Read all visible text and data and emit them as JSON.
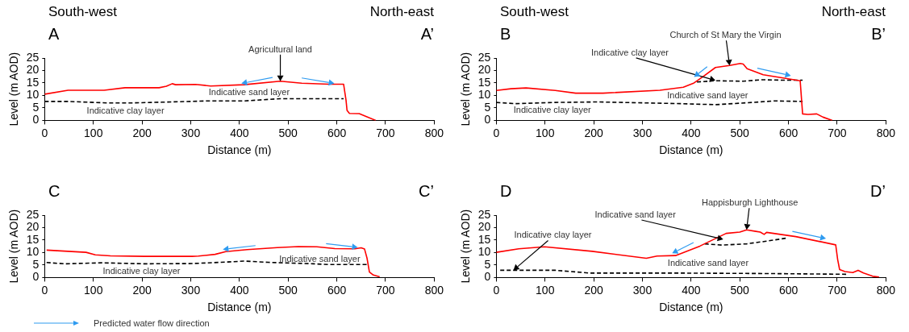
{
  "chart_data": [
    {
      "type": "line",
      "xlabel": "Distance (m)",
      "ylabel": "Level (m AOD)",
      "xlim": [
        0,
        800
      ],
      "xticks": [
        0,
        100,
        200,
        300,
        400,
        500,
        600,
        700,
        800
      ],
      "ylim": [
        0,
        25
      ],
      "yticks": [
        0,
        5,
        10,
        15,
        20,
        25
      ],
      "annotations": [
        "A",
        "A’",
        "South-west",
        "North-east",
        {
          "text": "Agricultural land",
          "x": 484,
          "y": 15.7
        },
        "Indicative sand layer",
        "Indicative clay layer"
      ],
      "series": [
        {
          "color": "#ff0000",
          "line_style": "solid",
          "x": [
            0,
            48,
            122,
            165,
            235,
            250,
            262,
            269,
            310,
            341,
            409,
            484,
            528,
            584,
            614,
            619,
            621,
            626,
            646,
            662,
            680
          ],
          "values": [
            10.5,
            12.1,
            12.1,
            13.1,
            13.1,
            13.7,
            14.7,
            14.3,
            14.4,
            13.8,
            14.3,
            15.7,
            14.9,
            14.5,
            14.5,
            8,
            4,
            2.8,
            2.7,
            1.4,
            0
          ]
        },
        {
          "color": "#000000",
          "line_style": "dashed",
          "x": [
            0,
            48,
            129,
            179,
            241,
            335,
            409,
            484,
            614
          ],
          "values": [
            7.6,
            7.6,
            7,
            7,
            7.3,
            7.8,
            7.8,
            8.7,
            8.7
          ]
        }
      ]
    },
    {
      "type": "line",
      "xlabel": "Distance (m)",
      "ylabel": "Level (m AOD)",
      "xlim": [
        0,
        800
      ],
      "xticks": [
        0,
        100,
        200,
        300,
        400,
        500,
        600,
        700,
        800
      ],
      "ylim": [
        0,
        25
      ],
      "yticks": [
        0,
        5,
        10,
        15,
        20,
        25
      ],
      "annotations": [
        "B",
        "B’",
        "South-west",
        "North-east",
        {
          "text": "Church of St Mary the Virgin",
          "x": 479,
          "y": 22
        },
        {
          "text": "Indicative clay layer",
          "x": 450,
          "y": 16
        },
        "Indicative sand layer",
        "Indicative clay layer"
      ],
      "series": [
        {
          "color": "#ff0000",
          "line_style": "solid",
          "x": [
            0,
            30,
            61,
            121,
            163,
            219,
            336,
            384,
            406,
            425,
            450,
            479,
            501,
            507,
            515,
            536,
            548,
            589,
            624,
            629,
            640,
            658,
            671,
            690
          ],
          "values": [
            12,
            12.7,
            13,
            12,
            10.9,
            10.9,
            12.1,
            13.3,
            15,
            17.6,
            21.2,
            22,
            22.8,
            22.6,
            20.7,
            19.2,
            18.3,
            17,
            15.9,
            2.6,
            2.4,
            2.6,
            1.3,
            0
          ]
        },
        {
          "color": "#000000",
          "line_style": "dashed",
          "x": [
            0,
            39,
            121,
            210,
            381,
            450,
            526,
            571,
            629
          ],
          "values": [
            7.2,
            6.7,
            7.2,
            7.4,
            6.7,
            6.3,
            7.2,
            7.8,
            7.6
          ]
        },
        {
          "color": "#000000",
          "line_style": "dashed",
          "x": [
            412,
            450,
            507,
            545,
            589,
            629
          ],
          "values": [
            15.4,
            15.9,
            15.7,
            16.3,
            16.1,
            16.1
          ]
        }
      ]
    },
    {
      "type": "line",
      "xlabel": "Distance (m)",
      "ylabel": "Level (m AOD)",
      "xlim": [
        0,
        800
      ],
      "xticks": [
        0,
        100,
        200,
        300,
        400,
        500,
        600,
        700,
        800
      ],
      "ylim": [
        0,
        25
      ],
      "yticks": [
        0,
        5,
        10,
        15,
        20,
        25
      ],
      "annotations": [
        "C",
        "C’",
        "Predicted water flow direction",
        "Indicative sand layer",
        "Indicative clay layer"
      ],
      "series": [
        {
          "color": "#ff0000",
          "line_style": "solid",
          "x": [
            4,
            48,
            85,
            104,
            135,
            204,
            303,
            316,
            350,
            372,
            416,
            478,
            521,
            559,
            596,
            637,
            650,
            657,
            662,
            667,
            675,
            688
          ],
          "values": [
            11,
            10.5,
            10.1,
            9.1,
            8.7,
            8.5,
            8.5,
            8.6,
            9.3,
            10.4,
            11.2,
            12,
            12.4,
            12.3,
            11.6,
            11.5,
            11.9,
            11.4,
            7.8,
            2.2,
            1,
            0.3
          ]
        },
        {
          "color": "#000000",
          "line_style": "dashed",
          "x": [
            4,
            42,
            117,
            204,
            303,
            384,
            409,
            459,
            553,
            584,
            665
          ],
          "values": [
            6,
            5.5,
            5.9,
            5.5,
            5.6,
            6.3,
            6.6,
            6.1,
            5.5,
            5.2,
            5.2
          ]
        }
      ]
    },
    {
      "type": "line",
      "xlabel": "Distance (m)",
      "ylabel": "Level (m AOD)",
      "xlim": [
        0,
        800
      ],
      "xticks": [
        0,
        100,
        200,
        300,
        400,
        500,
        600,
        700,
        800
      ],
      "ylim": [
        0,
        25
      ],
      "yticks": [
        0,
        5,
        10,
        15,
        20,
        25
      ],
      "annotations": [
        "D",
        "D’",
        {
          "text": "Happisburgh Lighthouse",
          "x": 514,
          "y": 19.1
        },
        {
          "text": "Indicative sand layer",
          "x": 466,
          "y": 15.3
        },
        {
          "text": "Indicative clay layer",
          "x": 35,
          "y": 2.9
        },
        "Indicative sand layer"
      ],
      "series": [
        {
          "color": "#ff0000",
          "line_style": "solid",
          "x": [
            0,
            46,
            99,
            197,
            308,
            330,
            368,
            418,
            472,
            500,
            514,
            533,
            542,
            550,
            555,
            615,
            697,
            701,
            705,
            716,
            732,
            743,
            754,
            773,
            786
          ],
          "values": [
            10.1,
            11.5,
            12.3,
            10.5,
            7.7,
            8.6,
            8.8,
            12.6,
            17.7,
            18.2,
            19.1,
            18.5,
            18.2,
            17.3,
            18.1,
            16.4,
            13.1,
            7.2,
            3.2,
            2.4,
            2,
            2.9,
            1.8,
            0.5,
            0.2
          ]
        },
        {
          "color": "#000000",
          "line_style": "dashed",
          "x": [
            8,
            121,
            191,
            362,
            552,
            722
          ],
          "values": [
            2.9,
            2.9,
            1.8,
            1.8,
            1.6,
            1.3
          ]
        },
        {
          "color": "#000000",
          "line_style": "dashed",
          "x": [
            428,
            463,
            514,
            552,
            596
          ],
          "values": [
            13.5,
            13,
            13.5,
            14.5,
            15.8
          ]
        }
      ]
    }
  ]
}
